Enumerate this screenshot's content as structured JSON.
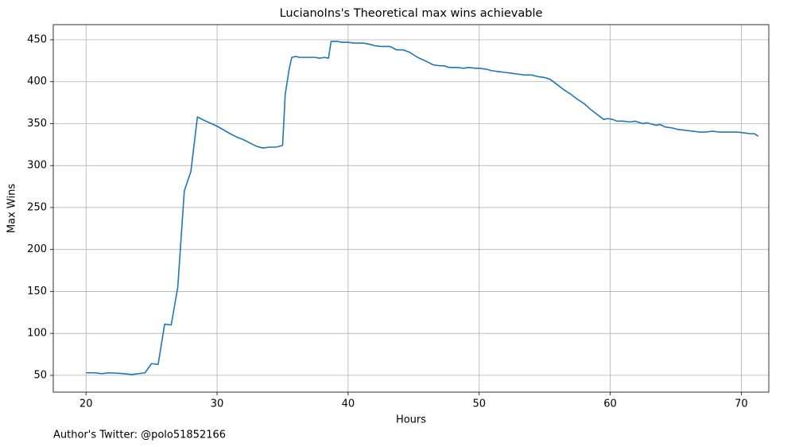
{
  "chart_data": {
    "type": "line",
    "title": "LucianoIns's Theoretical max wins achievable",
    "x_label": "Hours",
    "y_label": "Max Wins",
    "footnote": "Author's Twitter: @polo51852166",
    "xlim": [
      17.5,
      72.1
    ],
    "ylim": [
      30,
      468
    ],
    "xticks": [
      20,
      30,
      40,
      50,
      60,
      70
    ],
    "yticks": [
      50,
      100,
      150,
      200,
      250,
      300,
      350,
      400,
      450
    ],
    "grid": true,
    "x": [
      20.0,
      20.7,
      21.2,
      21.7,
      22.5,
      23.5,
      24.5,
      25.0,
      25.5,
      26.0,
      26.5,
      27.0,
      27.5,
      28.0,
      28.5,
      29.0,
      30.0,
      31.0,
      31.5,
      32.0,
      33.0,
      33.5,
      34.0,
      34.5,
      35.0,
      35.2,
      35.5,
      35.7,
      36.0,
      36.3,
      37.0,
      37.5,
      37.8,
      38.2,
      38.5,
      38.7,
      39.2,
      39.5,
      40.0,
      40.5,
      41.2,
      41.8,
      42.0,
      42.5,
      43.2,
      43.7,
      44.2,
      44.7,
      45.3,
      46.0,
      46.5,
      47.0,
      47.3,
      47.7,
      48.3,
      48.8,
      49.2,
      49.7,
      50.0,
      50.5,
      51.0,
      51.5,
      52.0,
      52.5,
      53.0,
      53.5,
      54.0,
      54.5,
      55.0,
      55.4,
      56.0,
      56.5,
      57.0,
      57.5,
      58.0,
      58.5,
      59.0,
      59.5,
      59.8,
      60.2,
      60.5,
      61.0,
      61.5,
      61.9,
      62.5,
      62.8,
      63.5,
      63.8,
      64.2,
      64.7,
      65.2,
      65.8,
      66.3,
      66.8,
      67.3,
      67.8,
      68.3,
      69.0,
      69.7,
      70.2,
      70.7,
      71.0,
      71.3
    ],
    "series": [
      {
        "name": "Max Wins",
        "color": "#1f77b4",
        "values": [
          53,
          53,
          52,
          53,
          52.5,
          51,
          53,
          64,
          63,
          111,
          110,
          155,
          270,
          293,
          358,
          354,
          347,
          338,
          334,
          331,
          323,
          321,
          322,
          322,
          324,
          385,
          415,
          429,
          430,
          429,
          429,
          429,
          428,
          429,
          428,
          448,
          448,
          447,
          447,
          446,
          446,
          444,
          443,
          442,
          442,
          438,
          438,
          435,
          429,
          424,
          420,
          419,
          419,
          417,
          417,
          416,
          417,
          416,
          416,
          415,
          413,
          412,
          411,
          410,
          409,
          408,
          408,
          406,
          405,
          403,
          396,
          390,
          385,
          379,
          374,
          367,
          361,
          355,
          356,
          355,
          353,
          353,
          352,
          353,
          350,
          351,
          348,
          349,
          346,
          345,
          343,
          342,
          341,
          340,
          340,
          341,
          340,
          340,
          340,
          339,
          338,
          338,
          335
        ]
      }
    ]
  }
}
